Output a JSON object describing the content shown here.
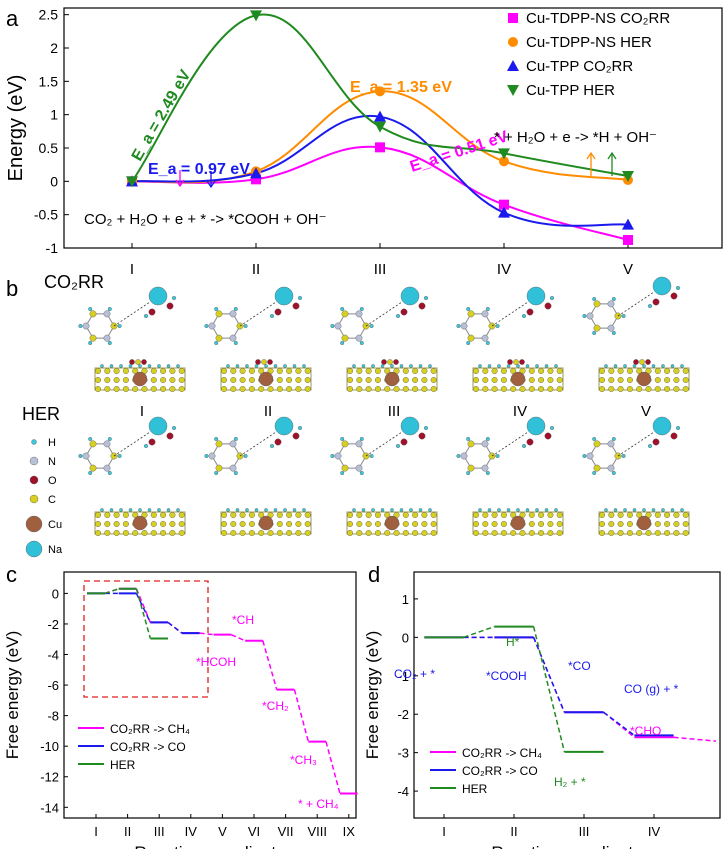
{
  "panel_labels": {
    "a": "a",
    "b": "b",
    "c": "c",
    "d": "d"
  },
  "colors": {
    "magenta": "#ff00ff",
    "orange": "#ff8c00",
    "blue": "#1a1aee",
    "green": "#1f8a1f",
    "red_dash": "#e02020",
    "H_atom": "#3cc8dc",
    "N_atom": "#b8c0d8",
    "O_atom": "#a0102a",
    "C_atom": "#d8d020",
    "Cu_atom": "#a06040",
    "Na_atom": "#30c0d8"
  },
  "panel_b": {
    "row1_label": "CO₂RR",
    "row2_label": "HER",
    "state_labels": [
      "I",
      "II",
      "III",
      "IV",
      "V"
    ],
    "legend": [
      {
        "label": "H",
        "color_key": "H_atom"
      },
      {
        "label": "N",
        "color_key": "N_atom"
      },
      {
        "label": "O",
        "color_key": "O_atom"
      },
      {
        "label": "C",
        "color_key": "C_atom"
      },
      {
        "label": "Cu",
        "color_key": "Cu_atom"
      },
      {
        "label": "Na",
        "color_key": "Na_atom"
      }
    ]
  },
  "chart_data": [
    {
      "id": "a",
      "type": "line",
      "ylabel": "Energy (eV)",
      "xlabel": "",
      "categories": [
        "I",
        "II",
        "III",
        "IV",
        "V"
      ],
      "ylim": [
        -1,
        2.6
      ],
      "yticks": [
        -1,
        -0.5,
        0,
        0.5,
        1,
        1.5,
        2,
        2.5
      ],
      "ytick_labels": [
        "-1",
        "-0.5",
        "0",
        "0.5",
        "1",
        "1.5",
        "2",
        "2.5"
      ],
      "legend_position": "top-right",
      "series": [
        {
          "name": "Cu-TDPP-NS CO₂RR",
          "marker": "square",
          "color": "#ff00ff",
          "values": [
            0,
            0.03,
            0.51,
            -0.35,
            -0.88
          ]
        },
        {
          "name": "Cu-TDPP-NS HER",
          "marker": "circle",
          "color": "#ff8c00",
          "values": [
            0,
            0.15,
            1.35,
            0.3,
            0.02
          ]
        },
        {
          "name": "Cu-TPP CO₂RR",
          "marker": "triangle-up",
          "color": "#1a1aee",
          "values": [
            0,
            0.12,
            0.97,
            -0.47,
            -0.65
          ]
        },
        {
          "name": "Cu-TPP HER",
          "marker": "triangle-down",
          "color": "#1f8a1f",
          "values": [
            0,
            2.49,
            0.82,
            0.42,
            0.08
          ]
        }
      ],
      "annotations": {
        "ea_green": "E_a = 2.49 eV",
        "ea_orange": "E_a = 1.35 eV",
        "ea_blue": "E_a = 0.97 eV",
        "ea_magenta": "E_a = 0.51 eV",
        "eq_co2": "CO₂ + H₂O + e + * -> *COOH + OH⁻",
        "eq_her": "* + H₂O + e -> *H + OH⁻"
      }
    },
    {
      "id": "c",
      "type": "line",
      "xlabel": "Reaction coordinate",
      "ylabel": "Free energy (eV)",
      "categories": [
        "I",
        "II",
        "III",
        "IV",
        "V",
        "VI",
        "VII",
        "VIII",
        "IX"
      ],
      "ylim": [
        -14.7,
        1.4
      ],
      "yticks": [
        0,
        -2,
        -4,
        -6,
        -8,
        -10,
        -12,
        -14
      ],
      "ytick_labels": [
        "0",
        "-2",
        "-4",
        "-6",
        "-8",
        "-10",
        "-12",
        "-14"
      ],
      "legend_position": "bottom-left",
      "series": [
        {
          "name": "CO₂RR -> CH₄",
          "color": "#ff00ff",
          "values": [
            0,
            0.3,
            -1.9,
            -2.6,
            -2.7,
            -3.1,
            -6.3,
            -9.7,
            -13.1
          ]
        },
        {
          "name": "CO₂RR -> CO",
          "color": "#1a1aee",
          "values": [
            0,
            0,
            -1.9,
            -2.6,
            null,
            null,
            null,
            null,
            null
          ]
        },
        {
          "name": "HER",
          "color": "#1f8a1f",
          "values": [
            0,
            0.3,
            -2.95,
            null,
            null,
            null,
            null,
            null,
            null
          ]
        }
      ],
      "annotations": [
        "*CH",
        "*HCOH",
        "*CH₂",
        "*CH₃",
        "* + CH₄"
      ]
    },
    {
      "id": "d",
      "type": "line",
      "xlabel": "Reaction coordinate",
      "ylabel": "Free energy (eV)",
      "categories": [
        "I",
        "II",
        "III",
        "IV"
      ],
      "ylim": [
        -4.7,
        1.7
      ],
      "yticks": [
        1,
        0,
        -1,
        -2,
        -3,
        -4
      ],
      "ytick_labels": [
        "1",
        "0",
        "-1",
        "-2",
        "-3",
        "-4"
      ],
      "legend_position": "bottom-left",
      "series": [
        {
          "name": "CO₂RR -> CH₄",
          "color": "#ff00ff",
          "values": [
            0,
            0,
            -1.95,
            -2.6
          ],
          "extra_tail": -2.7
        },
        {
          "name": "CO₂RR -> CO",
          "color": "#1a1aee",
          "values": [
            0,
            0,
            -1.95,
            -2.55
          ]
        },
        {
          "name": "HER",
          "color": "#1f8a1f",
          "values": [
            0,
            0.28,
            -2.98,
            null
          ]
        }
      ],
      "annotations": [
        "H*",
        "CO₂ + *",
        "*COOH",
        "*CO",
        "CO (g) + *",
        "H₂ + *",
        "*CHO"
      ]
    }
  ]
}
